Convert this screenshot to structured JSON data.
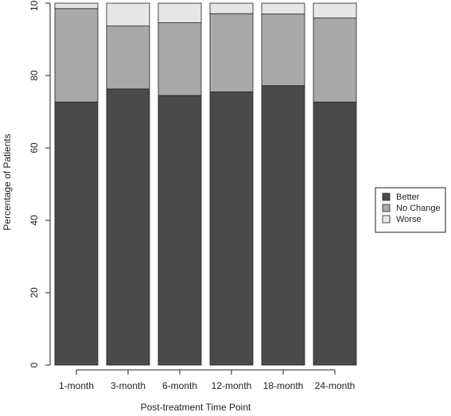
{
  "chart_data": {
    "type": "bar",
    "stacked": true,
    "title": "",
    "xlabel": "Post-treatment Time Point",
    "ylabel": "Percentage of Patients",
    "ylim": [
      0,
      100
    ],
    "yticks": [
      "0",
      "20",
      "40",
      "60",
      "80",
      "100"
    ],
    "categories": [
      "1-month",
      "3-month",
      "6-month",
      "12-month",
      "18-month",
      "24-month"
    ],
    "series": [
      {
        "name": "Better",
        "color": "#4a4a4a",
        "values": [
          72.7,
          76.3,
          74.5,
          75.5,
          77.2,
          72.7
        ]
      },
      {
        "name": "No Change",
        "color": "#a9a9a9",
        "values": [
          25.8,
          17.4,
          20.1,
          21.6,
          19.8,
          23.2
        ]
      },
      {
        "name": "Worse",
        "color": "#e6e6e6",
        "values": [
          1.5,
          6.3,
          5.4,
          2.9,
          3.0,
          4.1
        ]
      }
    ],
    "legend": {
      "placement": "right",
      "entries": [
        "Better",
        "No Change",
        "Worse"
      ]
    },
    "grid": false
  }
}
